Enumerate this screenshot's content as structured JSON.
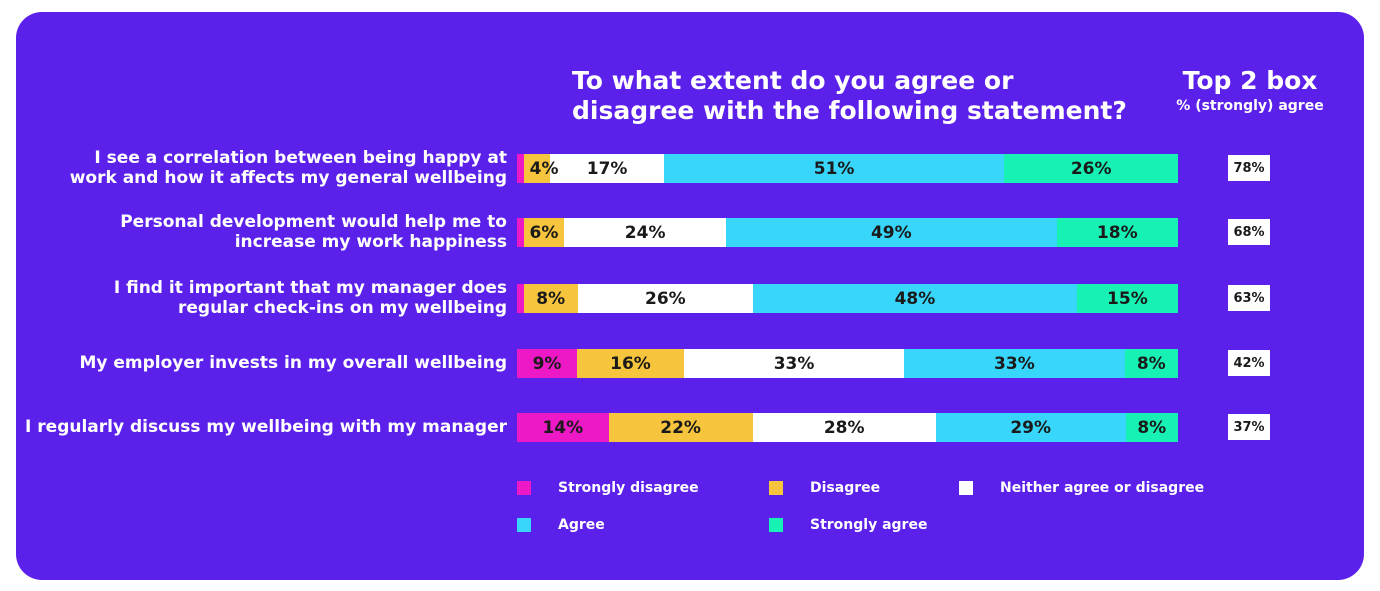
{
  "colors": {
    "background": "#5b21ea",
    "strongly_disagree": "#ee19c6",
    "disagree": "#f7c53d",
    "neither": "#ffffff",
    "agree": "#38d6fb",
    "strongly_agree": "#17f2b4"
  },
  "chart_data": {
    "type": "bar",
    "orientation": "horizontal",
    "stacked": true,
    "title": "To what extent do you agree or disagree with the following statement?",
    "categories": [
      "I see a correlation between being happy at work and how it affects my general wellbeing",
      "Personal development would help me to increase my work happiness",
      "I find it important that my manager does regular check-ins on my wellbeing",
      "My employer invests in my overall wellbeing",
      "I regularly discuss my wellbeing with my manager"
    ],
    "series": [
      {
        "name": "Strongly disagree",
        "values": [
          1,
          1,
          1,
          9,
          14
        ],
        "labels": [
          "",
          "",
          "",
          "9%",
          "14%"
        ]
      },
      {
        "name": "Disagree",
        "values": [
          4,
          6,
          8,
          16,
          22
        ],
        "labels": [
          "4%",
          "6%",
          "8%",
          "16%",
          "22%"
        ]
      },
      {
        "name": "Neither agree or disagree",
        "values": [
          17,
          24,
          26,
          33,
          28
        ],
        "labels": [
          "17%",
          "24%",
          "26%",
          "33%",
          "28%"
        ]
      },
      {
        "name": "Agree",
        "values": [
          51,
          49,
          48,
          33,
          29
        ],
        "labels": [
          "51%",
          "49%",
          "48%",
          "33%",
          "29%"
        ]
      },
      {
        "name": "Strongly agree",
        "values": [
          26,
          18,
          15,
          8,
          8
        ],
        "labels": [
          "26%",
          "18%",
          "15%",
          "8%",
          "8%"
        ]
      }
    ],
    "top2box": {
      "title": "Top 2 box",
      "subtitle": "% (strongly) agree",
      "values": [
        "78%",
        "68%",
        "63%",
        "42%",
        "37%"
      ]
    },
    "legend": [
      "Strongly disagree",
      "Disagree",
      "Neither agree or disagree",
      "Agree",
      "Strongly agree"
    ]
  }
}
